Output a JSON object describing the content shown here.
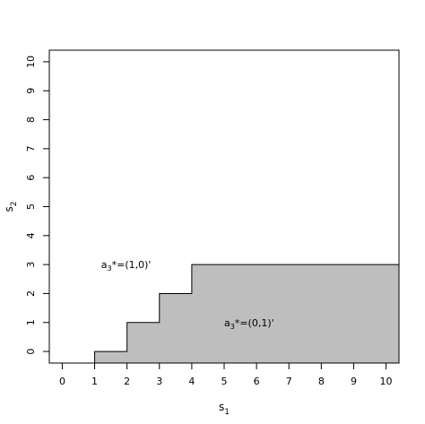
{
  "chart_data": {
    "type": "area",
    "title": "",
    "xlabel": {
      "base": "s",
      "sub": "1"
    },
    "ylabel": {
      "base": "s",
      "sub": "2"
    },
    "xlim": [
      -0.4,
      10.4
    ],
    "ylim": [
      -0.4,
      10.4
    ],
    "xticks": [
      0,
      1,
      2,
      3,
      4,
      5,
      6,
      7,
      8,
      9,
      10
    ],
    "yticks": [
      0,
      1,
      2,
      3,
      4,
      5,
      6,
      7,
      8,
      9,
      10
    ],
    "grid": false,
    "fill_color": "#bebebe",
    "region_boundary": [
      {
        "x": 1,
        "y": -0.4
      },
      {
        "x": 1,
        "y": 0
      },
      {
        "x": 2,
        "y": 0
      },
      {
        "x": 2,
        "y": 1
      },
      {
        "x": 3,
        "y": 1
      },
      {
        "x": 3,
        "y": 2
      },
      {
        "x": 4,
        "y": 2
      },
      {
        "x": 4,
        "y": 3
      },
      {
        "x": 10.4,
        "y": 3
      },
      {
        "x": 10.4,
        "y": -0.4
      }
    ],
    "annotations": [
      {
        "pre": "a",
        "sub": "3",
        "post": "*=(1,0)'",
        "x": 1.2,
        "y": 3.0
      },
      {
        "pre": "a",
        "sub": "3",
        "post": "*=(0,1)'",
        "x": 5.0,
        "y": 1.0
      }
    ]
  }
}
